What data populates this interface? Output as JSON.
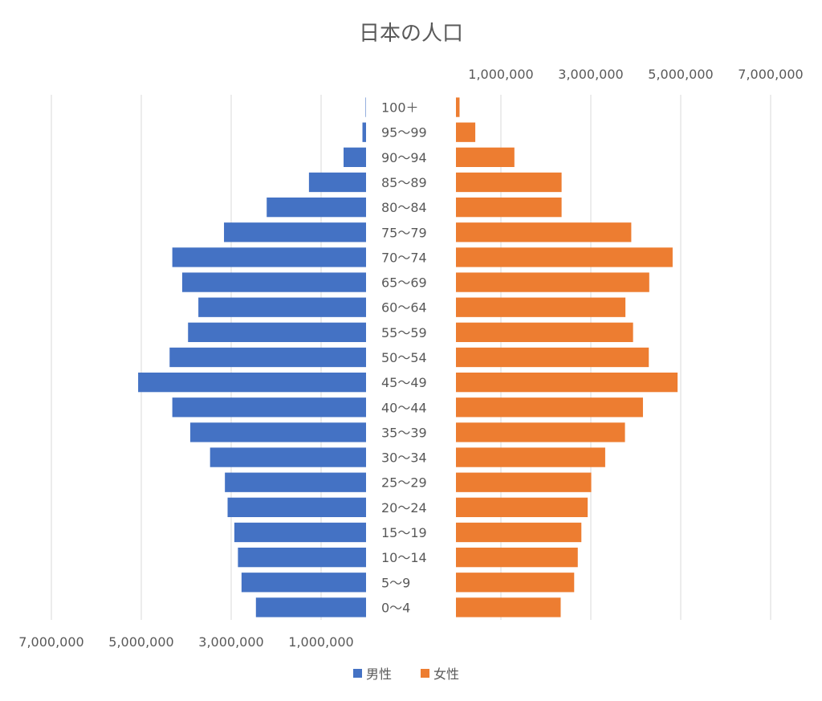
{
  "chart_data": {
    "type": "bar",
    "title": "日本の人口",
    "categories": [
      "0～4",
      "5～9",
      "10～14",
      "15～19",
      "20～24",
      "25～29",
      "30～34",
      "35～39",
      "40～44",
      "45～49",
      "50～54",
      "55～59",
      "60～64",
      "65～69",
      "70～74",
      "75～79",
      "80～84",
      "85～89",
      "90～94",
      "95～99",
      "100＋"
    ],
    "series": [
      {
        "name": "男性",
        "color": "#4472c4",
        "values": [
          2450000,
          2770000,
          2850000,
          2930000,
          3080000,
          3140000,
          3470000,
          3910000,
          4310000,
          5070000,
          4370000,
          3960000,
          3730000,
          4090000,
          4310000,
          3160000,
          2210000,
          1270000,
          500000,
          80000,
          10000
        ]
      },
      {
        "name": "女性",
        "color": "#ed7d31",
        "values": [
          2330000,
          2630000,
          2710000,
          2790000,
          2930000,
          3010000,
          3320000,
          3760000,
          4160000,
          4930000,
          4290000,
          3940000,
          3770000,
          4300000,
          4820000,
          3900000,
          2350000,
          2350000,
          1300000,
          430000,
          80000
        ]
      }
    ],
    "axes": {
      "male_ticks": [
        "7,000,000",
        "5,000,000",
        "3,000,000",
        "1,000,000"
      ],
      "female_ticks": [
        "1,000,000",
        "3,000,000",
        "5,000,000",
        "7,000,000"
      ],
      "male_tick_values": [
        7000000,
        5000000,
        3000000,
        1000000
      ],
      "female_tick_values": [
        1000000,
        3000000,
        5000000,
        7000000
      ],
      "male_range": [
        7000000,
        0
      ],
      "female_range": [
        0,
        7000000
      ]
    },
    "legend": {
      "position": "bottom",
      "items": [
        {
          "label": "男性",
          "color": "#4472c4"
        },
        {
          "label": "女性",
          "color": "#ed7d31"
        }
      ]
    }
  }
}
